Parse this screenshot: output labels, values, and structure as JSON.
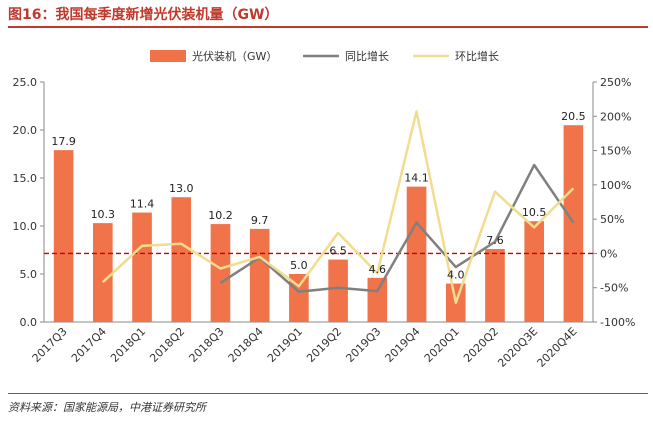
{
  "figure_title": "图16：我国每季度新增光伏装机量（GW）",
  "source": "资料来源：国家能源局，中港证券研究所",
  "chart_data": {
    "type": "bar",
    "title": "图16：我国每季度新增光伏装机量（GW）",
    "categories": [
      "2017Q3",
      "2017Q4",
      "2018Q1",
      "2018Q2",
      "2018Q3",
      "2018Q4",
      "2019Q1",
      "2019Q2",
      "2019Q3",
      "2019Q4",
      "2020Q1",
      "2020Q2",
      "2020Q3E",
      "2020Q4E"
    ],
    "series": [
      {
        "name": "光伏装机（GW）",
        "type": "bar",
        "axis": "left",
        "color": "#f0734a",
        "values": [
          17.9,
          10.3,
          11.4,
          13.0,
          10.2,
          9.7,
          5.0,
          6.5,
          4.6,
          14.1,
          4.0,
          7.6,
          10.5,
          20.5
        ],
        "labels": [
          "17.9",
          "10.3",
          "11.4",
          "13.0",
          "10.2",
          "9.7",
          "5.0",
          "6.5",
          "4.6",
          "14.1",
          "4.0",
          "7.6",
          "10.5",
          "20.5"
        ]
      },
      {
        "name": "同比增长",
        "type": "line",
        "axis": "right",
        "color": "#808080",
        "values": [
          null,
          null,
          null,
          null,
          -43,
          -6,
          -56,
          -50,
          -55,
          45,
          -20,
          17,
          129,
          45
        ]
      },
      {
        "name": "环比增长",
        "type": "line",
        "axis": "right",
        "color": "#f2dc8e",
        "values": [
          null,
          -42,
          11,
          14,
          -22,
          -5,
          -48,
          30,
          -29,
          207,
          -72,
          90,
          38,
          95
        ]
      }
    ],
    "y_left": {
      "min": 0,
      "max": 25,
      "ticks": [
        "0.0",
        "5.0",
        "10.0",
        "15.0",
        "20.0",
        "25.0"
      ]
    },
    "y_right": {
      "min": -100,
      "max": 250,
      "ticks": [
        "-100%",
        "-50%",
        "0%",
        "50%",
        "100%",
        "150%",
        "200%",
        "250%"
      ]
    },
    "reference_line": {
      "axis": "right",
      "value": 0,
      "color": "#cc0000",
      "style": "dashed"
    },
    "legend": {
      "position": "top",
      "entries": [
        "光伏装机（GW）",
        "同比增长",
        "环比增长"
      ]
    }
  }
}
